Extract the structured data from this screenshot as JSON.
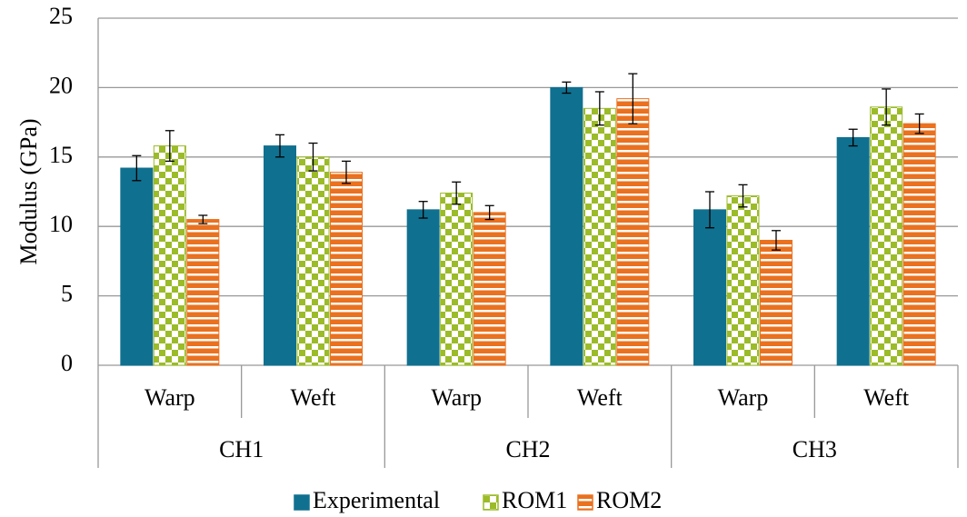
{
  "chart_data": {
    "type": "bar",
    "y_label": "Modulus (GPa)",
    "categories": [
      "Warp",
      "Weft",
      "Warp",
      "Weft",
      "Warp",
      "Weft"
    ],
    "category_groups": [
      "CH1",
      "CH2",
      "CH3"
    ],
    "series": [
      {
        "name": "Experimental",
        "color": "#10708f",
        "pattern": "solid",
        "values": [
          14.2,
          15.8,
          11.2,
          20.0,
          11.2,
          16.4
        ],
        "errors": [
          0.9,
          0.8,
          0.6,
          0.4,
          1.3,
          0.6
        ]
      },
      {
        "name": "ROM1",
        "color": "#9bbb29",
        "pattern": "checker",
        "values": [
          15.8,
          15.0,
          12.4,
          18.5,
          12.2,
          18.6
        ],
        "errors": [
          1.1,
          1.0,
          0.8,
          1.2,
          0.8,
          1.3
        ]
      },
      {
        "name": "ROM2",
        "color": "#ea711f",
        "pattern": "stripes",
        "values": [
          10.5,
          13.9,
          11.0,
          19.2,
          9.0,
          17.4
        ],
        "errors": [
          0.3,
          0.8,
          0.5,
          1.8,
          0.7,
          0.7
        ]
      }
    ],
    "ylim": [
      0,
      25
    ],
    "yticks": [
      0,
      5,
      10,
      15,
      20,
      25
    ],
    "grid": true,
    "legend": "bottom"
  }
}
